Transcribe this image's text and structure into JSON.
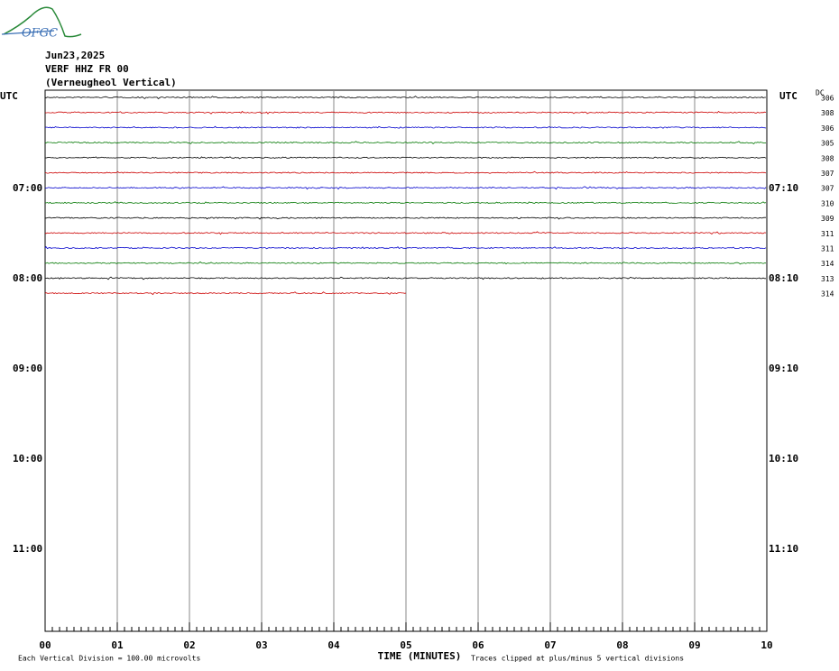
{
  "logo": "OFGC",
  "header": {
    "date": "Jun23,2025",
    "station": "VERF HHZ FR 00",
    "description": "(Verneugheol Vertical)"
  },
  "left_labels": [
    "UTC",
    "07:00",
    "08:00",
    "09:00",
    "10:00",
    "11:00"
  ],
  "right_labels": [
    "UTC",
    "07:10",
    "08:10",
    "09:10",
    "10:10",
    "11:10"
  ],
  "dc_label": "DC",
  "dc_values": [
    "306",
    "308",
    "306",
    "305",
    "308",
    "307",
    "307",
    "310",
    "309",
    "311",
    "311",
    "314",
    "313",
    "314"
  ],
  "x_labels": [
    "00",
    "01",
    "02",
    "03",
    "04",
    "05",
    "06",
    "07",
    "08",
    "09",
    "10"
  ],
  "x_title": "TIME (MINUTES)",
  "footer_left": "Each Vertical Division =  100.00 microvolts",
  "footer_right": "Traces clipped at plus/minus 5 vertical divisions"
}
